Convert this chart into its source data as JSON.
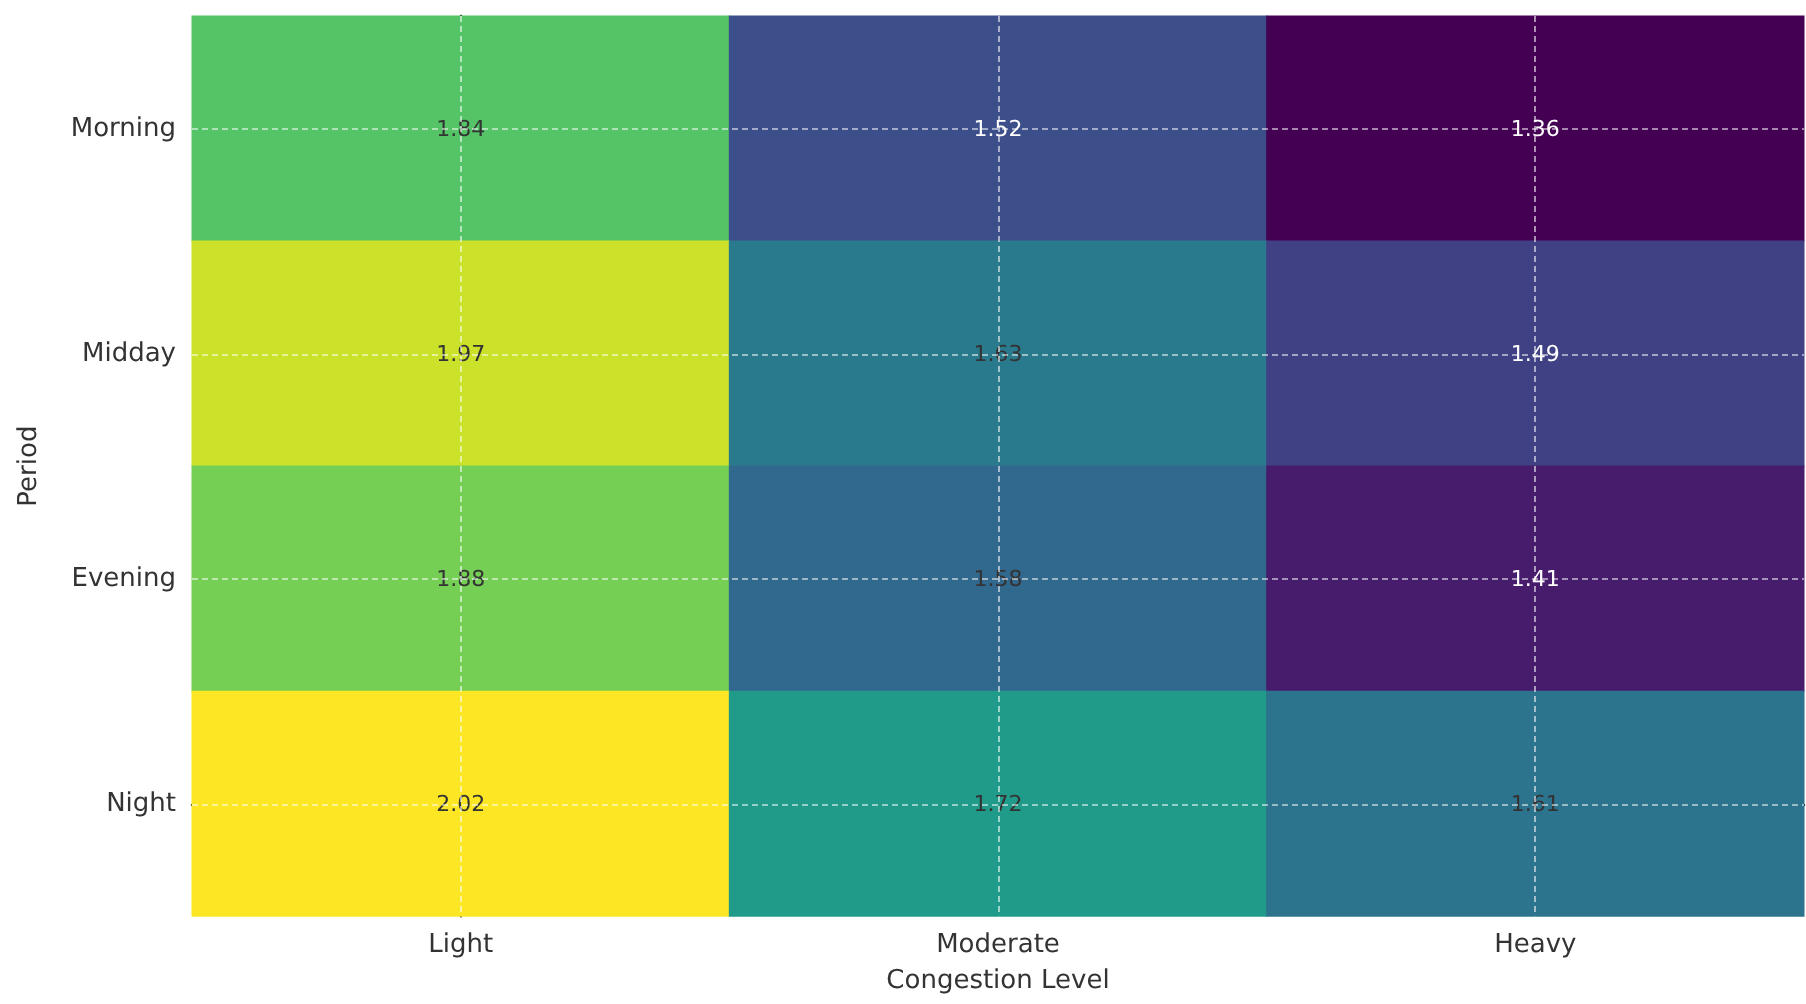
{
  "chart_data": {
    "type": "heatmap",
    "xlabel": "Congestion Level",
    "ylabel": "Period",
    "categories": [
      "Light",
      "Moderate",
      "Heavy"
    ],
    "y_categories": [
      "Morning",
      "Midday",
      "Evening",
      "Night"
    ],
    "cells": [
      [
        1.84,
        1.52,
        1.36
      ],
      [
        1.97,
        1.63,
        1.49
      ],
      [
        1.88,
        1.58,
        1.41
      ],
      [
        2.02,
        1.72,
        1.61
      ]
    ],
    "data_labels": true,
    "grid": true
  }
}
